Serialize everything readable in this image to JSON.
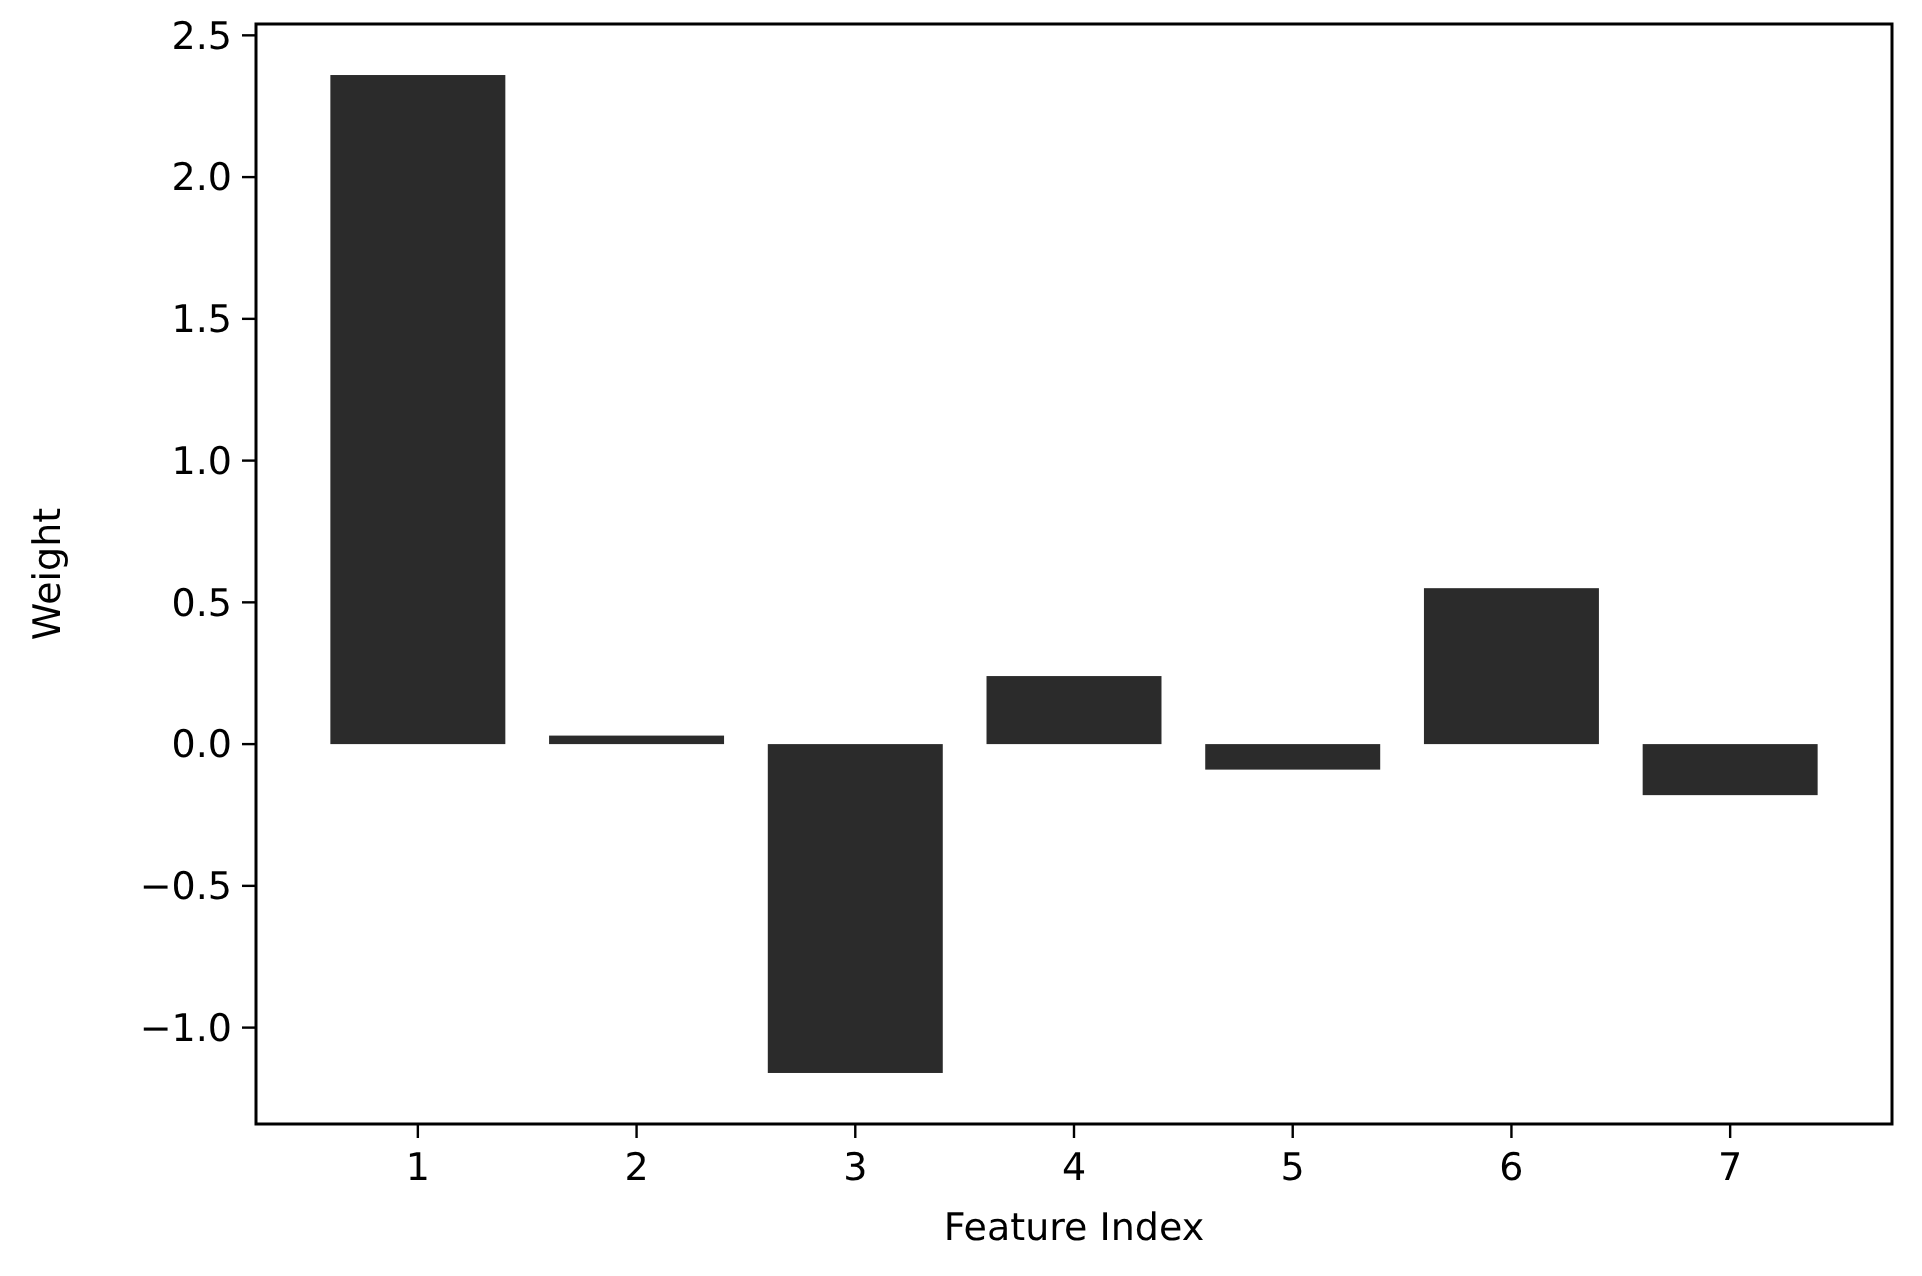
{
  "chart_data": {
    "type": "bar",
    "xlabel": "Feature Index",
    "ylabel": "Weight",
    "categories": [
      "1",
      "2",
      "3",
      "4",
      "5",
      "6",
      "7"
    ],
    "values": [
      2.36,
      0.03,
      -1.16,
      0.24,
      -0.09,
      0.55,
      -0.18
    ],
    "color": "#2b2b2b",
    "ylim": [
      -1.34,
      2.54
    ],
    "yticks": [
      {
        "value": -1.0,
        "label": "−1.0"
      },
      {
        "value": -0.5,
        "label": "−0.5"
      },
      {
        "value": 0,
        "label": "0.0"
      },
      {
        "value": 0.5,
        "label": "0.5"
      },
      {
        "value": 1.0,
        "label": "1.0"
      },
      {
        "value": 1.5,
        "label": "1.5"
      },
      {
        "value": 2.0,
        "label": "2.0"
      },
      {
        "value": 2.5,
        "label": "2.5"
      }
    ],
    "grid": false
  }
}
